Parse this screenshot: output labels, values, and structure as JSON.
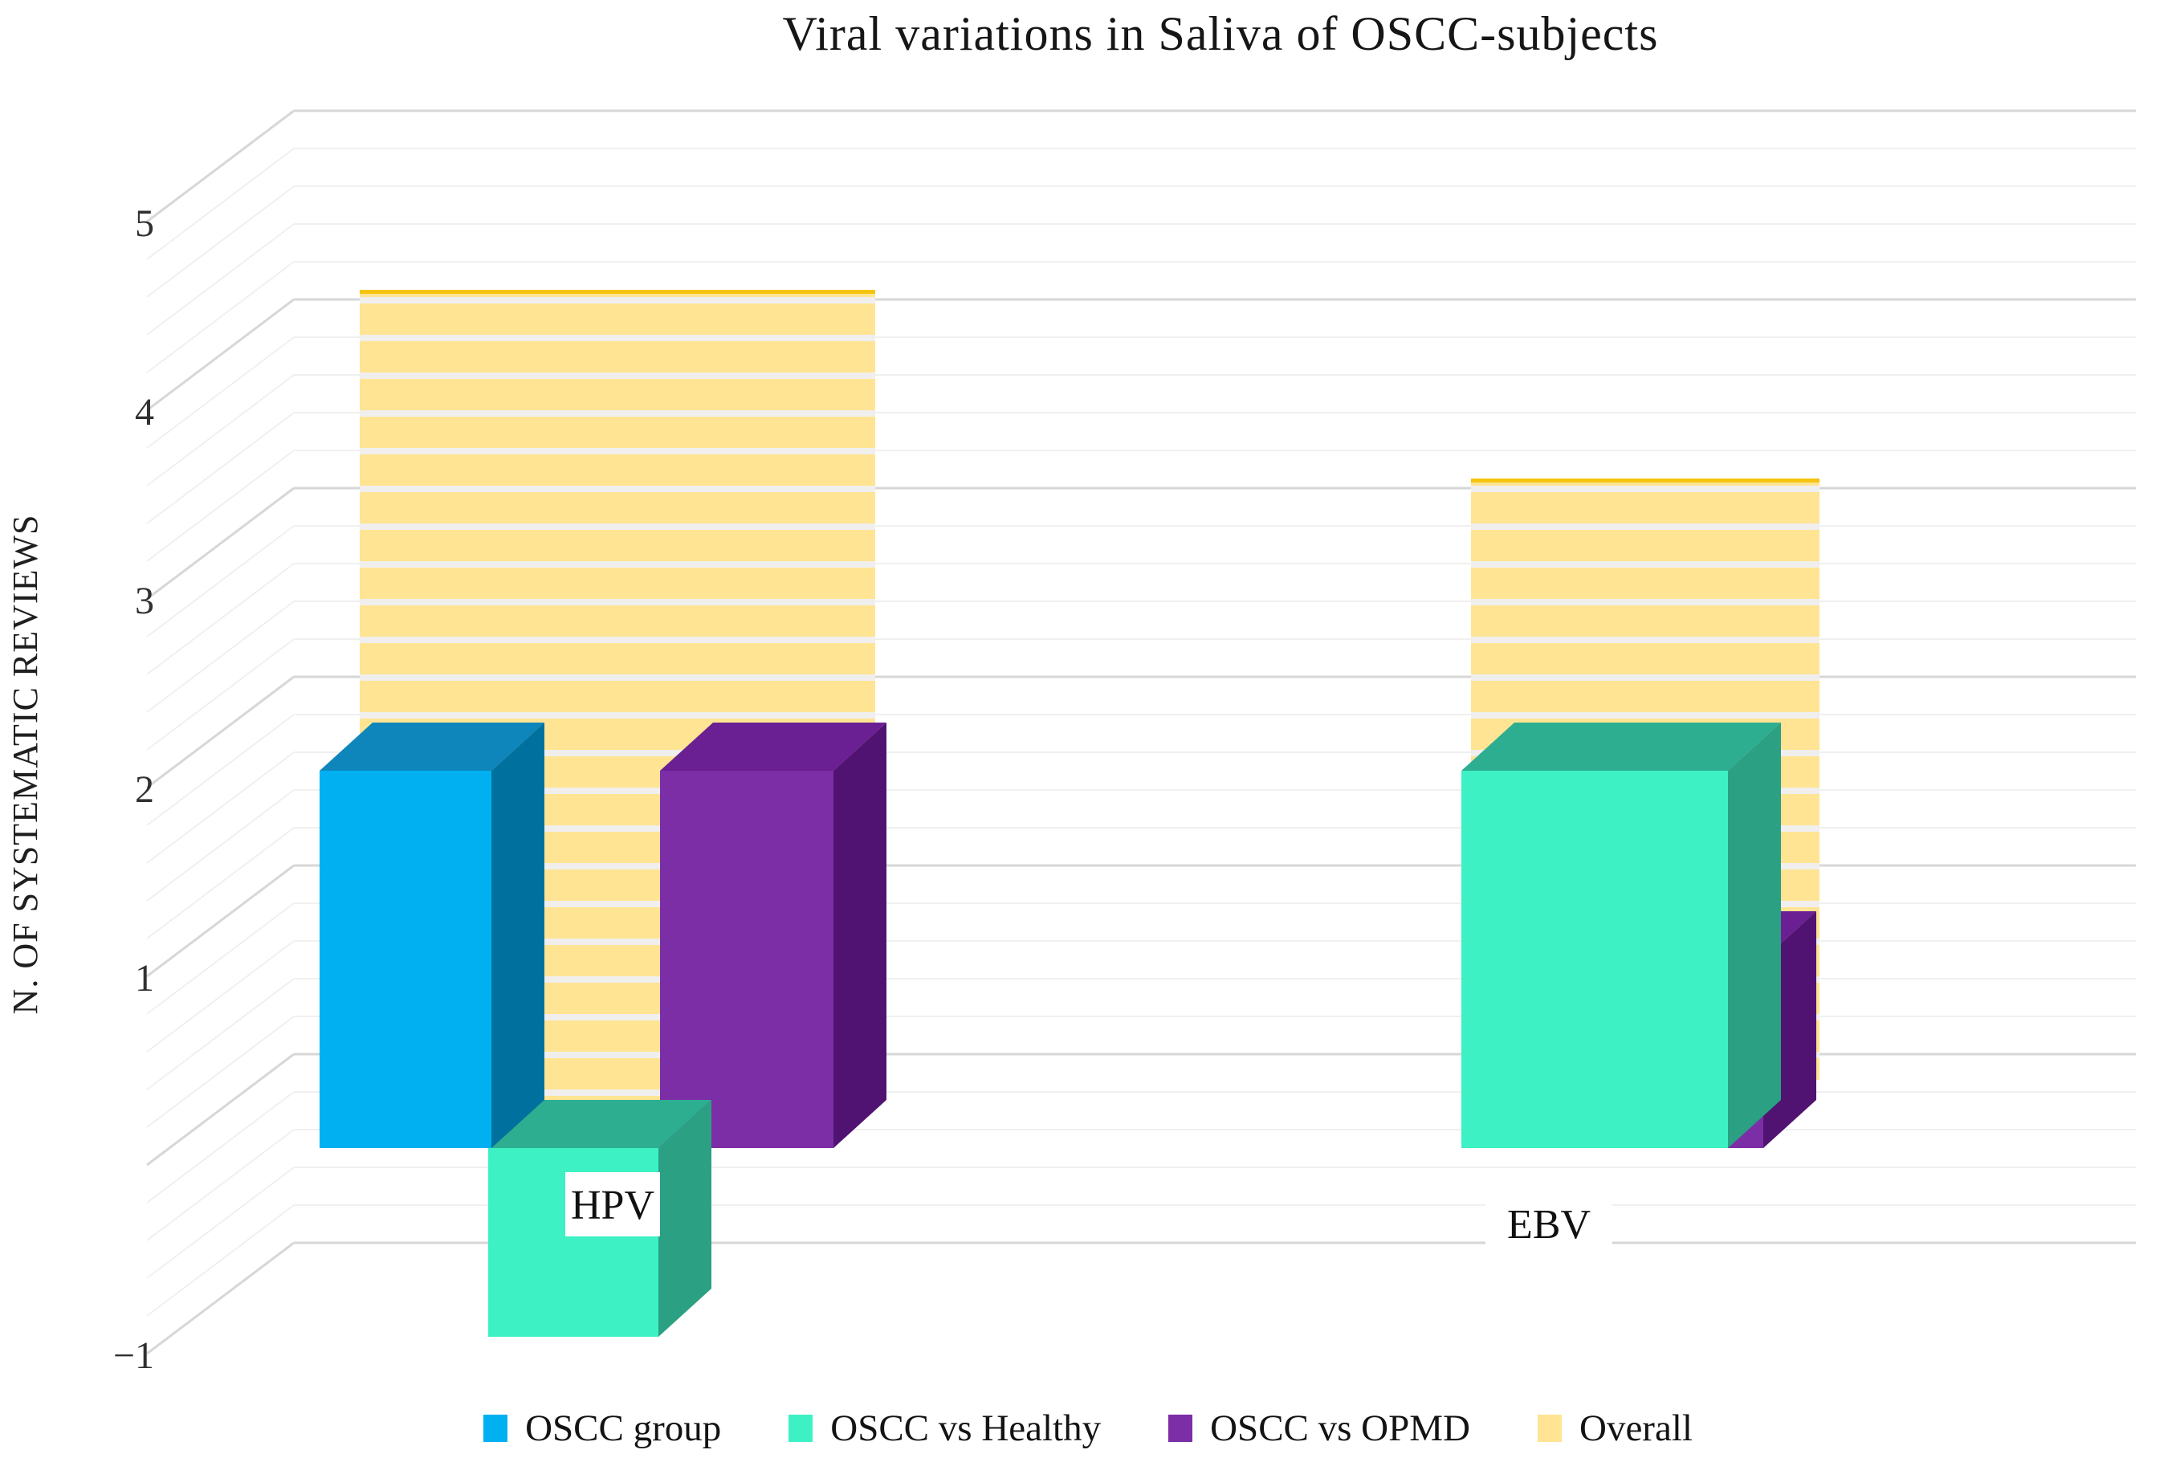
{
  "title": "Viral variations in Saliva of OSCC-subjects",
  "chart_data": {
    "type": "bar",
    "variant": "3d-column",
    "title": "Viral variations in Saliva of OSCC-subjects",
    "categories": [
      "HPV",
      "EBV"
    ],
    "series": [
      {
        "name": "OSCC group",
        "values": [
          2,
          0
        ],
        "color": {
          "front": "#00B0F0",
          "top": "#0E86BB",
          "side": "#00719E"
        }
      },
      {
        "name": "OSCC vs Healthy",
        "values": [
          -1,
          2
        ],
        "color": {
          "front": "#3DF1C5",
          "top": "#2EAE90",
          "side": "#2BA083"
        }
      },
      {
        "name": "OSCC vs OPMD",
        "values": [
          2,
          1
        ],
        "color": {
          "front": "#7C2EA6",
          "top": "#6A1F93",
          "side": "#511371"
        }
      },
      {
        "name": "Overall",
        "values": [
          4,
          3
        ],
        "color": {
          "front": "#FFE493",
          "stripe": "#F0EFEE",
          "edge": "#F5C411"
        }
      }
    ],
    "ylabel": "N. OF SYSTEMATIC REVIEWS",
    "yticks": [
      {
        "label": "5",
        "value": 5
      },
      {
        "label": "4",
        "value": 4
      },
      {
        "label": "3",
        "value": 3
      },
      {
        "label": "2",
        "value": 2
      },
      {
        "label": "1",
        "value": 1
      },
      {
        "label": "−1",
        "value": -1
      }
    ],
    "ylim": [
      -1,
      5
    ],
    "grid": {
      "major_interval": 1,
      "minor_interval": 0.2,
      "visible": true
    },
    "legend_position": "bottom"
  }
}
